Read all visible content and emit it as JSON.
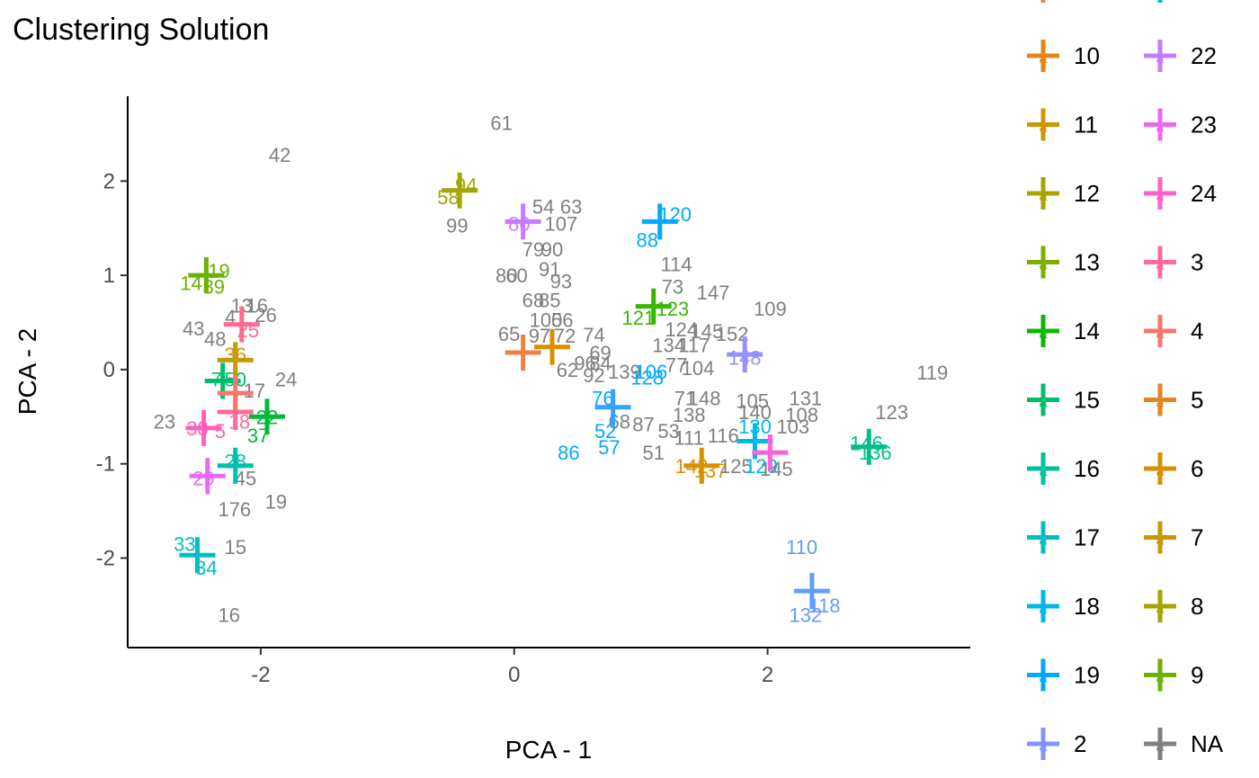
{
  "chart_data": {
    "type": "scatter",
    "title": "Clustering Solution",
    "xlabel": "PCA - 1",
    "ylabel": "PCA - 2",
    "xlim": [
      -3.05,
      3.6
    ],
    "ylim": [
      -2.95,
      2.9
    ],
    "x_ticks": [
      -2,
      0,
      2
    ],
    "y_ticks": [
      -2,
      -1,
      0,
      1,
      2
    ],
    "x_tick_labels": [
      "-2",
      "0",
      "2"
    ],
    "y_tick_labels": [
      "-2",
      "-1",
      "0",
      "1",
      "2"
    ],
    "grid": false,
    "legend_position": "right",
    "legend": [
      {
        "key": "10",
        "color": "#E68613"
      },
      {
        "key": "11",
        "color": "#CD9600"
      },
      {
        "key": "12",
        "color": "#ABA300"
      },
      {
        "key": "13",
        "color": "#7CAE00"
      },
      {
        "key": "14",
        "color": "#0CB702"
      },
      {
        "key": "15",
        "color": "#00BE67"
      },
      {
        "key": "16",
        "color": "#00C19A"
      },
      {
        "key": "17",
        "color": "#00BFC4"
      },
      {
        "key": "18",
        "color": "#00B8E7"
      },
      {
        "key": "19",
        "color": "#00A9FF"
      },
      {
        "key": "2",
        "color": "#8494FF"
      },
      {
        "key": "22",
        "color": "#C77CFF"
      },
      {
        "key": "23",
        "color": "#ED68ED"
      },
      {
        "key": "24",
        "color": "#FF61CC"
      },
      {
        "key": "3",
        "color": "#FF68A1"
      },
      {
        "key": "4",
        "color": "#F8766D"
      },
      {
        "key": "5",
        "color": "#E6861F"
      },
      {
        "key": "6",
        "color": "#D89000"
      },
      {
        "key": "7",
        "color": "#C99800"
      },
      {
        "key": "8",
        "color": "#A3A500"
      },
      {
        "key": "9",
        "color": "#6BB100"
      },
      {
        "key": "NA",
        "color": "#7F7F7F"
      }
    ],
    "cluster_centers": [
      {
        "x": 0.07,
        "y": 0.18,
        "color": "#EF7F45"
      },
      {
        "x": 0.3,
        "y": 0.24,
        "color": "#D89000"
      },
      {
        "x": 1.48,
        "y": -1.02,
        "color": "#D89000"
      },
      {
        "x": -2.2,
        "y": 0.1,
        "color": "#C39A00"
      },
      {
        "x": -0.43,
        "y": 1.9,
        "color": "#A3A500"
      },
      {
        "x": -2.43,
        "y": 1.0,
        "color": "#6BB100"
      },
      {
        "x": 1.1,
        "y": 0.67,
        "color": "#39B600"
      },
      {
        "x": -1.95,
        "y": -0.5,
        "color": "#00BA38"
      },
      {
        "x": -2.3,
        "y": -0.12,
        "color": "#00BE6C"
      },
      {
        "x": 2.8,
        "y": -0.82,
        "color": "#00BF8C"
      },
      {
        "x": -2.2,
        "y": -1.02,
        "color": "#00BFAE"
      },
      {
        "x": -2.5,
        "y": -1.97,
        "color": "#00BFC4"
      },
      {
        "x": 1.9,
        "y": -0.76,
        "color": "#00B8E7"
      },
      {
        "x": 1.15,
        "y": 1.57,
        "color": "#00A9FF"
      },
      {
        "x": 0.78,
        "y": -0.4,
        "color": "#35A2FF"
      },
      {
        "x": 2.35,
        "y": -2.35,
        "color": "#619CFF"
      },
      {
        "x": 1.82,
        "y": 0.16,
        "color": "#9590FF"
      },
      {
        "x": 0.07,
        "y": 1.57,
        "color": "#C77CFF"
      },
      {
        "x": -2.42,
        "y": -1.13,
        "color": "#E76BF3"
      },
      {
        "x": 2.02,
        "y": -0.88,
        "color": "#FA62DB"
      },
      {
        "x": -2.45,
        "y": -0.62,
        "color": "#FF62BC"
      },
      {
        "x": -2.2,
        "y": -0.45,
        "color": "#FF6A98"
      },
      {
        "x": -2.15,
        "y": 0.48,
        "color": "#FF6C91"
      },
      {
        "x": -2.2,
        "y": -0.25,
        "color": "#F8766D"
      }
    ],
    "point_labels": [
      {
        "t": "61",
        "x": -0.1,
        "y": 2.62,
        "color": "#7F7F7F"
      },
      {
        "t": "42",
        "x": -1.85,
        "y": 2.28,
        "color": "#7F7F7F"
      },
      {
        "t": "94",
        "x": -0.38,
        "y": 1.96,
        "color": "#A3A500"
      },
      {
        "t": "58",
        "x": -0.52,
        "y": 1.83,
        "color": "#A3A500"
      },
      {
        "t": "99",
        "x": -0.45,
        "y": 1.53,
        "color": "#7F7F7F"
      },
      {
        "t": "54",
        "x": 0.23,
        "y": 1.73,
        "color": "#7F7F7F"
      },
      {
        "t": "63",
        "x": 0.45,
        "y": 1.73,
        "color": "#7F7F7F"
      },
      {
        "t": "107",
        "x": 0.37,
        "y": 1.55,
        "color": "#7F7F7F"
      },
      {
        "t": "80",
        "x": 0.04,
        "y": 1.55,
        "color": "#C77CFF"
      },
      {
        "t": "79",
        "x": 0.15,
        "y": 1.28,
        "color": "#7F7F7F"
      },
      {
        "t": "90",
        "x": 0.3,
        "y": 1.28,
        "color": "#7F7F7F"
      },
      {
        "t": "120",
        "x": 1.27,
        "y": 1.65,
        "color": "#00A9FF"
      },
      {
        "t": "88",
        "x": 1.05,
        "y": 1.38,
        "color": "#00A9FF"
      },
      {
        "t": "114",
        "x": 1.28,
        "y": 1.12,
        "color": "#7F7F7F"
      },
      {
        "t": "19",
        "x": -2.33,
        "y": 1.05,
        "color": "#6BB100"
      },
      {
        "t": "14",
        "x": -2.55,
        "y": 0.92,
        "color": "#6BB100"
      },
      {
        "t": "39",
        "x": -2.37,
        "y": 0.88,
        "color": "#6BB100"
      },
      {
        "t": "80",
        "x": -0.06,
        "y": 1.0,
        "color": "#7F7F7F"
      },
      {
        "t": "60",
        "x": 0.02,
        "y": 1.0,
        "color": "#7F7F7F"
      },
      {
        "t": "91",
        "x": 0.28,
        "y": 1.07,
        "color": "#7F7F7F"
      },
      {
        "t": "93",
        "x": 0.37,
        "y": 0.94,
        "color": "#7F7F7F"
      },
      {
        "t": "73",
        "x": 1.25,
        "y": 0.88,
        "color": "#7F7F7F"
      },
      {
        "t": "147",
        "x": 1.57,
        "y": 0.82,
        "color": "#7F7F7F"
      },
      {
        "t": "109",
        "x": 2.02,
        "y": 0.65,
        "color": "#7F7F7F"
      },
      {
        "t": "68",
        "x": 0.15,
        "y": 0.74,
        "color": "#7F7F7F"
      },
      {
        "t": "85",
        "x": 0.28,
        "y": 0.74,
        "color": "#7F7F7F"
      },
      {
        "t": "121",
        "x": 0.98,
        "y": 0.55,
        "color": "#39B600"
      },
      {
        "t": "123",
        "x": 1.25,
        "y": 0.65,
        "color": "#39B600"
      },
      {
        "t": "13",
        "x": -2.15,
        "y": 0.68,
        "color": "#7F7F7F"
      },
      {
        "t": "16",
        "x": -2.03,
        "y": 0.68,
        "color": "#7F7F7F"
      },
      {
        "t": "26",
        "x": -1.96,
        "y": 0.58,
        "color": "#7F7F7F"
      },
      {
        "t": "4",
        "x": -2.24,
        "y": 0.56,
        "color": "#7F7F7F"
      },
      {
        "t": "43",
        "x": -2.53,
        "y": 0.44,
        "color": "#7F7F7F"
      },
      {
        "t": "48",
        "x": -2.36,
        "y": 0.33,
        "color": "#7F7F7F"
      },
      {
        "t": "25",
        "x": -2.1,
        "y": 0.42,
        "color": "#FF6C91"
      },
      {
        "t": "100",
        "x": 0.25,
        "y": 0.53,
        "color": "#7F7F7F"
      },
      {
        "t": "56",
        "x": 0.38,
        "y": 0.53,
        "color": "#7F7F7F"
      },
      {
        "t": "65",
        "x": -0.04,
        "y": 0.38,
        "color": "#7F7F7F"
      },
      {
        "t": "97",
        "x": 0.2,
        "y": 0.36,
        "color": "#7F7F7F"
      },
      {
        "t": "72",
        "x": 0.4,
        "y": 0.36,
        "color": "#7F7F7F"
      },
      {
        "t": "74",
        "x": 0.63,
        "y": 0.37,
        "color": "#7F7F7F"
      },
      {
        "t": "124",
        "x": 1.32,
        "y": 0.43,
        "color": "#7F7F7F"
      },
      {
        "t": "145",
        "x": 1.52,
        "y": 0.41,
        "color": "#7F7F7F"
      },
      {
        "t": "152",
        "x": 1.72,
        "y": 0.38,
        "color": "#7F7F7F"
      },
      {
        "t": "134",
        "x": 1.22,
        "y": 0.26,
        "color": "#7F7F7F"
      },
      {
        "t": "117",
        "x": 1.42,
        "y": 0.26,
        "color": "#7F7F7F"
      },
      {
        "t": "148",
        "x": 1.82,
        "y": 0.13,
        "color": "#9590FF"
      },
      {
        "t": "36",
        "x": -2.2,
        "y": 0.16,
        "color": "#CD9600"
      },
      {
        "t": "69",
        "x": 0.68,
        "y": 0.18,
        "color": "#7F7F7F"
      },
      {
        "t": "84",
        "x": 0.68,
        "y": 0.07,
        "color": "#7F7F7F"
      },
      {
        "t": "96",
        "x": 0.56,
        "y": 0.07,
        "color": "#7F7F7F"
      },
      {
        "t": "62",
        "x": 0.42,
        "y": 0.0,
        "color": "#7F7F7F"
      },
      {
        "t": "92",
        "x": 0.63,
        "y": -0.06,
        "color": "#7F7F7F"
      },
      {
        "t": "139",
        "x": 0.87,
        "y": -0.02,
        "color": "#7F7F7F"
      },
      {
        "t": "106",
        "x": 1.08,
        "y": -0.02,
        "color": "#00A9FF"
      },
      {
        "t": "128",
        "x": 1.05,
        "y": -0.08,
        "color": "#00A9FF"
      },
      {
        "t": "77",
        "x": 1.28,
        "y": 0.05,
        "color": "#7F7F7F"
      },
      {
        "t": "104",
        "x": 1.45,
        "y": 0.02,
        "color": "#7F7F7F"
      },
      {
        "t": "119",
        "x": 3.3,
        "y": -0.03,
        "color": "#7F7F7F"
      },
      {
        "t": "24",
        "x": -1.8,
        "y": -0.1,
        "color": "#7F7F7F"
      },
      {
        "t": "7",
        "x": -2.35,
        "y": -0.1,
        "color": "#00BE6C"
      },
      {
        "t": "50",
        "x": -2.2,
        "y": -0.1,
        "color": "#00BE6C"
      },
      {
        "t": "17",
        "x": -2.05,
        "y": -0.22,
        "color": "#7F7F7F"
      },
      {
        "t": "76",
        "x": 0.7,
        "y": -0.3,
        "color": "#00A9FF"
      },
      {
        "t": "131",
        "x": 2.3,
        "y": -0.3,
        "color": "#7F7F7F"
      },
      {
        "t": "71",
        "x": 1.35,
        "y": -0.3,
        "color": "#7F7F7F"
      },
      {
        "t": "148",
        "x": 1.5,
        "y": -0.3,
        "color": "#7F7F7F"
      },
      {
        "t": "105",
        "x": 1.88,
        "y": -0.33,
        "color": "#7F7F7F"
      },
      {
        "t": "138",
        "x": 1.38,
        "y": -0.48,
        "color": "#7F7F7F"
      },
      {
        "t": "140",
        "x": 1.9,
        "y": -0.45,
        "color": "#7F7F7F"
      },
      {
        "t": "108",
        "x": 2.27,
        "y": -0.48,
        "color": "#7F7F7F"
      },
      {
        "t": "123",
        "x": 2.98,
        "y": -0.45,
        "color": "#7F7F7F"
      },
      {
        "t": "23",
        "x": -2.76,
        "y": -0.55,
        "color": "#7F7F7F"
      },
      {
        "t": "38",
        "x": -2.5,
        "y": -0.62,
        "color": "#FF62BC"
      },
      {
        "t": "5",
        "x": -2.32,
        "y": -0.65,
        "color": "#FF62BC"
      },
      {
        "t": "18",
        "x": -2.17,
        "y": -0.55,
        "color": "#FF6A98"
      },
      {
        "t": "22",
        "x": -1.95,
        "y": -0.5,
        "color": "#00BA38"
      },
      {
        "t": "37",
        "x": -2.02,
        "y": -0.7,
        "color": "#00BA38"
      },
      {
        "t": "68",
        "x": 0.83,
        "y": -0.55,
        "color": "#7F7F7F"
      },
      {
        "t": "87",
        "x": 1.02,
        "y": -0.58,
        "color": "#7F7F7F"
      },
      {
        "t": "52",
        "x": 0.72,
        "y": -0.65,
        "color": "#00A9FF"
      },
      {
        "t": "57",
        "x": 0.75,
        "y": -0.82,
        "color": "#00A9FF"
      },
      {
        "t": "86",
        "x": 0.43,
        "y": -0.88,
        "color": "#00A9FF"
      },
      {
        "t": "53",
        "x": 1.22,
        "y": -0.65,
        "color": "#7F7F7F"
      },
      {
        "t": "111",
        "x": 1.38,
        "y": -0.72,
        "color": "#7F7F7F"
      },
      {
        "t": "116",
        "x": 1.65,
        "y": -0.7,
        "color": "#7F7F7F"
      },
      {
        "t": "130",
        "x": 1.9,
        "y": -0.6,
        "color": "#00B8E7"
      },
      {
        "t": "103",
        "x": 2.2,
        "y": -0.6,
        "color": "#7F7F7F"
      },
      {
        "t": "146",
        "x": 2.78,
        "y": -0.78,
        "color": "#00BF8C"
      },
      {
        "t": "136",
        "x": 2.85,
        "y": -0.88,
        "color": "#00BF8C"
      },
      {
        "t": "51",
        "x": 1.1,
        "y": -0.88,
        "color": "#7F7F7F"
      },
      {
        "t": "142",
        "x": 1.4,
        "y": -1.02,
        "color": "#D89000"
      },
      {
        "t": "137",
        "x": 1.55,
        "y": -1.07,
        "color": "#D89000"
      },
      {
        "t": "125",
        "x": 1.75,
        "y": -1.02,
        "color": "#7F7F7F"
      },
      {
        "t": "129",
        "x": 1.95,
        "y": -1.02,
        "color": "#00B8E7"
      },
      {
        "t": "145",
        "x": 2.07,
        "y": -1.05,
        "color": "#7F7F7F"
      },
      {
        "t": "28",
        "x": -2.2,
        "y": -0.97,
        "color": "#00BFAE"
      },
      {
        "t": "45",
        "x": -2.12,
        "y": -1.15,
        "color": "#7F7F7F"
      },
      {
        "t": "29",
        "x": -2.45,
        "y": -1.15,
        "color": "#E76BF3"
      },
      {
        "t": "17",
        "x": -2.25,
        "y": -1.48,
        "color": "#7F7F7F"
      },
      {
        "t": "6",
        "x": -2.12,
        "y": -1.48,
        "color": "#7F7F7F"
      },
      {
        "t": "19",
        "x": -1.88,
        "y": -1.4,
        "color": "#7F7F7F"
      },
      {
        "t": "33",
        "x": -2.6,
        "y": -1.85,
        "color": "#00BFC4"
      },
      {
        "t": "34",
        "x": -2.43,
        "y": -2.1,
        "color": "#00BFC4"
      },
      {
        "t": "15",
        "x": -2.2,
        "y": -1.88,
        "color": "#7F7F7F"
      },
      {
        "t": "110",
        "x": 2.27,
        "y": -1.88,
        "color": "#619CFF"
      },
      {
        "t": "132",
        "x": 2.3,
        "y": -2.6,
        "color": "#619CFF"
      },
      {
        "t": "118",
        "x": 2.45,
        "y": -2.5,
        "color": "#619CFF"
      },
      {
        "t": "16",
        "x": -2.25,
        "y": -2.6,
        "color": "#7F7F7F"
      }
    ]
  }
}
